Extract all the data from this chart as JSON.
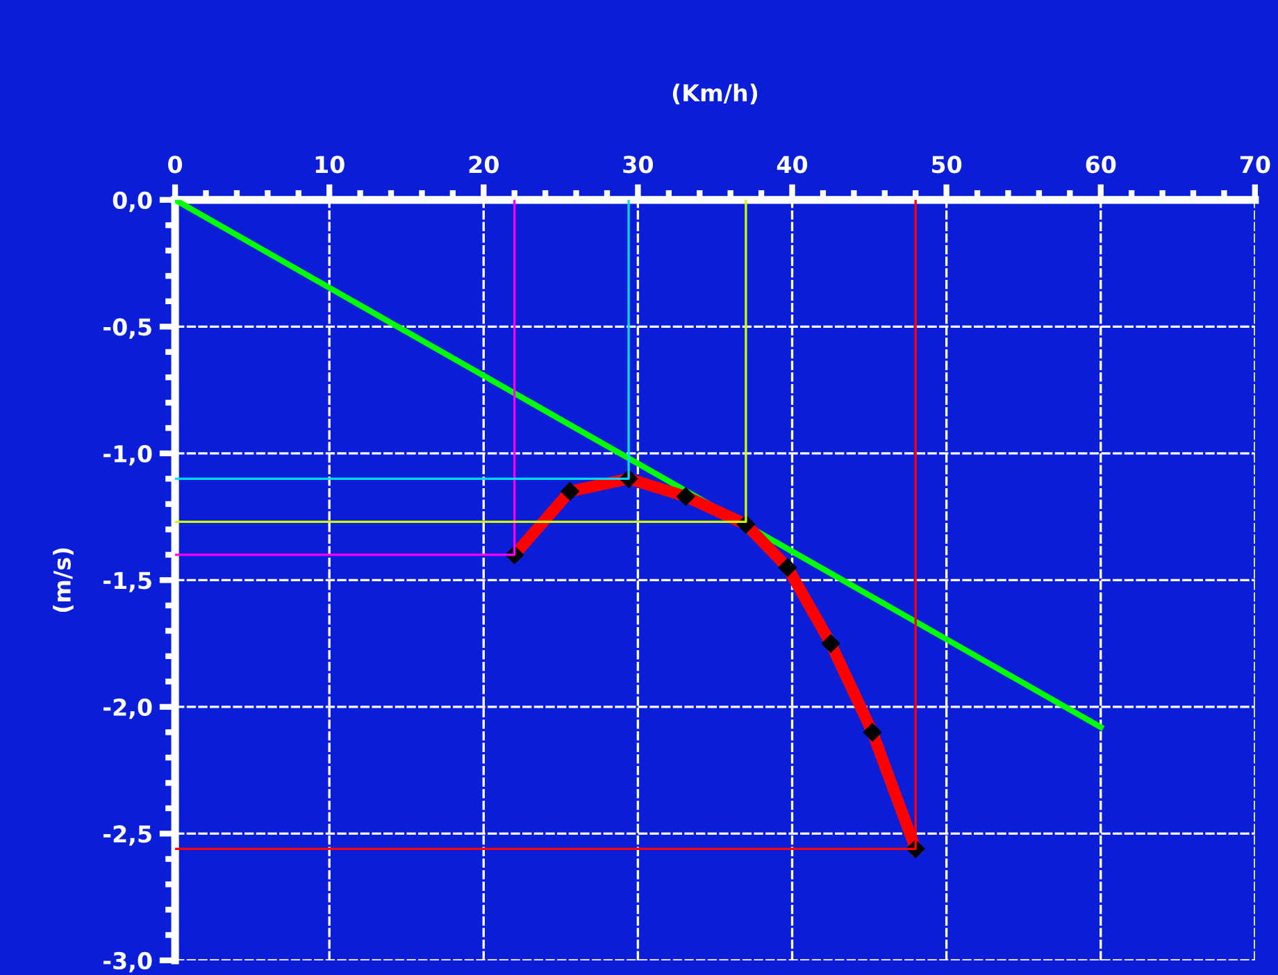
{
  "chart_data": {
    "type": "line",
    "xlabel": "(Km/h)",
    "ylabel": "(m/s)",
    "xlim": [
      0,
      70
    ],
    "xticks": [
      0,
      10,
      20,
      30,
      40,
      50,
      60,
      70
    ],
    "ylim": [
      -3,
      0
    ],
    "yticks": [
      {
        "value": 0,
        "label": "0,0"
      },
      {
        "value": -0.5,
        "label": "-0,5"
      },
      {
        "value": -1,
        "label": "-1,0"
      },
      {
        "value": -1.5,
        "label": "-1,5"
      },
      {
        "value": -2,
        "label": "-2,0"
      },
      {
        "value": -2.5,
        "label": "-2,5"
      },
      {
        "value": -3,
        "label": "-3,0"
      }
    ],
    "grid": true,
    "line_style": "solid",
    "series": [
      {
        "color": "#ff00ff",
        "x": [
          22,
          22,
          0
        ],
        "values": [
          0,
          -1.4,
          -1.4
        ]
      },
      {
        "color": "#00d8ff",
        "x": [
          29.4,
          29.4,
          0
        ],
        "values": [
          0,
          -1.1,
          -1.1
        ]
      },
      {
        "color": "#c8ff00",
        "x": [
          37,
          37,
          0
        ],
        "values": [
          0,
          -1.27,
          -1.27
        ]
      },
      {
        "color": "#ff0000",
        "x": [
          48,
          48,
          0
        ],
        "values": [
          0,
          -2.56,
          -2.56
        ]
      },
      {
        "color": "#00ff00",
        "x": [
          0,
          60
        ],
        "values": [
          0,
          -2.08
        ]
      },
      {
        "color": "#ff0000",
        "marker": "diamond",
        "x": [
          22,
          25.6,
          29.4,
          33.1,
          37,
          39.7,
          42.5,
          45.2,
          48
        ],
        "values": [
          -1.4,
          -1.15,
          -1.1,
          -1.17,
          -1.28,
          -1.45,
          -1.75,
          -2.1,
          -2.56
        ]
      }
    ]
  }
}
